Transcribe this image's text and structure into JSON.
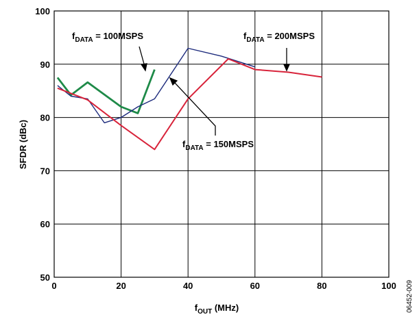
{
  "chart_data": {
    "type": "line",
    "xlabel": {
      "main": "f",
      "sub": "OUT",
      "rest": " (MHz)"
    },
    "ylabel": "SFDR (dBc)",
    "xlim": [
      0,
      100
    ],
    "ylim": [
      50,
      100
    ],
    "x_ticks": [
      0,
      20,
      40,
      60,
      80,
      100
    ],
    "y_ticks": [
      50,
      60,
      70,
      80,
      90,
      100
    ],
    "grid": true,
    "series": [
      {
        "name": "fDATA = 100MSPS",
        "color": "#1e8a48",
        "x": [
          1,
          5,
          10,
          20,
          25,
          30
        ],
        "y": [
          87.5,
          84.2,
          86.6,
          82,
          80.8,
          89
        ]
      },
      {
        "name": "fDATA = 150MSPS",
        "color": "#1c2a7c",
        "x": [
          1,
          5,
          10,
          15,
          20,
          25,
          30,
          40,
          50,
          60
        ],
        "y": [
          86,
          84,
          83.5,
          79,
          80,
          82,
          83.5,
          93,
          91.5,
          89.5
        ]
      },
      {
        "name": "fDATA = 200MSPS",
        "color": "#d8233a",
        "x": [
          1,
          10,
          20,
          30,
          40,
          52,
          60,
          70,
          80
        ],
        "y": [
          85.5,
          83.3,
          78.5,
          74,
          83.5,
          91,
          89,
          88.5,
          87.6
        ]
      }
    ],
    "annotations": [
      {
        "main": "f",
        "sub": "DATA",
        "rest": " = 100MSPS"
      },
      {
        "main": "f",
        "sub": "DATA",
        "rest": " = 150MSPS"
      },
      {
        "main": "f",
        "sub": "DATA",
        "rest": " = 200MSPS"
      }
    ],
    "figure_id": "06452-009"
  }
}
